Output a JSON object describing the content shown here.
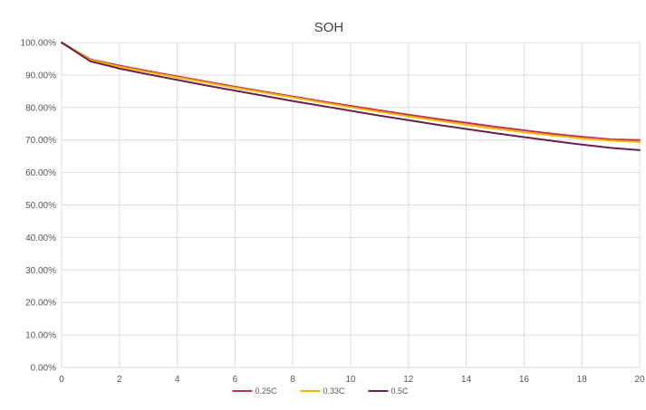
{
  "chart_data": {
    "type": "line",
    "title": "SOH",
    "xlabel": "",
    "ylabel": "",
    "xlim": [
      0,
      20
    ],
    "ylim": [
      0,
      100
    ],
    "x_ticks": [
      "0",
      "2",
      "4",
      "6",
      "8",
      "10",
      "12",
      "14",
      "16",
      "18",
      "20"
    ],
    "x_tick_values": [
      0,
      2,
      4,
      6,
      8,
      10,
      12,
      14,
      16,
      18,
      20
    ],
    "y_ticks": [
      "0.00%",
      "10.00%",
      "20.00%",
      "30.00%",
      "40.00%",
      "50.00%",
      "60.00%",
      "70.00%",
      "80.00%",
      "90.00%",
      "100.00%"
    ],
    "y_tick_values": [
      0,
      10,
      20,
      30,
      40,
      50,
      60,
      70,
      80,
      90,
      100
    ],
    "grid": true,
    "legend_position": "bottom",
    "x": [
      0,
      1,
      2,
      3,
      4,
      5,
      6,
      7,
      8,
      9,
      10,
      11,
      12,
      13,
      14,
      15,
      16,
      17,
      18,
      19,
      20
    ],
    "series": [
      {
        "name": "0.25C",
        "color": "#c0304f",
        "values": [
          100,
          94.8,
          92.9,
          91.2,
          89.6,
          88.0,
          86.4,
          84.9,
          83.4,
          81.9,
          80.5,
          79.1,
          77.8,
          76.5,
          75.3,
          74.1,
          73.0,
          71.9,
          71.0,
          70.2,
          70.0
        ]
      },
      {
        "name": "0.33C",
        "color": "#f5b400",
        "values": [
          100,
          94.6,
          92.6,
          90.9,
          89.3,
          87.7,
          86.1,
          84.6,
          83.1,
          81.6,
          80.1,
          78.7,
          77.3,
          76.0,
          74.7,
          73.5,
          72.4,
          71.4,
          70.5,
          69.8,
          69.4
        ]
      },
      {
        "name": "0.5C",
        "color": "#6b1f4f",
        "values": [
          100,
          94.2,
          92.0,
          90.2,
          88.5,
          86.8,
          85.2,
          83.6,
          82.0,
          80.5,
          79.0,
          77.5,
          76.1,
          74.7,
          73.4,
          72.1,
          70.9,
          69.7,
          68.6,
          67.6,
          66.9
        ]
      }
    ]
  }
}
